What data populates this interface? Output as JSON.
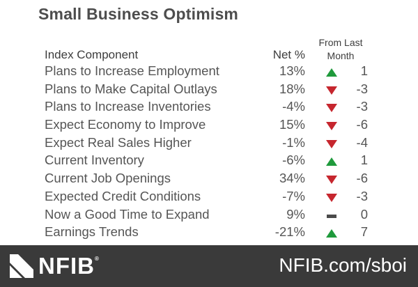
{
  "title": "Small Business Optimism",
  "headers": {
    "component": "Index Component",
    "net": "Net %",
    "from_last_1": "From Last",
    "from_last_2": "Month"
  },
  "rows": [
    {
      "name": "Plans to Increase Employment",
      "net": "13%",
      "trend": "up",
      "change": "1"
    },
    {
      "name": "Plans to Make Capital Outlays",
      "net": "18%",
      "trend": "down",
      "change": "-3"
    },
    {
      "name": "Plans to Increase Inventories",
      "net": "-4%",
      "trend": "down",
      "change": "-3"
    },
    {
      "name": "Expect Economy to Improve",
      "net": "15%",
      "trend": "down",
      "change": "-6"
    },
    {
      "name": "Expect Real Sales Higher",
      "net": "-1%",
      "trend": "down",
      "change": "-4"
    },
    {
      "name": "Current Inventory",
      "net": "-6%",
      "trend": "up",
      "change": "1"
    },
    {
      "name": "Current Job Openings",
      "net": "34%",
      "trend": "down",
      "change": "-6"
    },
    {
      "name": "Expected Credit Conditions",
      "net": "-7%",
      "trend": "down",
      "change": "-3"
    },
    {
      "name": "Now a Good Time to Expand",
      "net": "9%",
      "trend": "flat",
      "change": "0"
    },
    {
      "name": "Earnings Trends",
      "net": "-21%",
      "trend": "up",
      "change": "7"
    }
  ],
  "footer": {
    "logo": "NFIB",
    "url": "NFIB.com/sboi"
  },
  "colors": {
    "up": "#1f9a3c",
    "down": "#c6262e",
    "flat": "#4a4a4a",
    "footer_bg": "#3a3a3a"
  }
}
